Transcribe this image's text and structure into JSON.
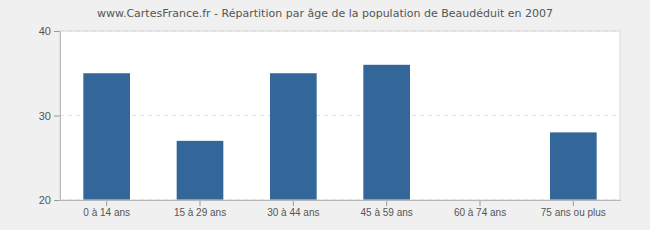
{
  "chart_data": {
    "type": "bar",
    "title": "www.CartesFrance.fr - Répartition par âge de la population de Beaudéduit en 2007",
    "categories": [
      "0 à 14 ans",
      "15 à 29 ans",
      "30 à 44 ans",
      "45 à 59 ans",
      "60 à 74 ans",
      "75 ans ou plus"
    ],
    "values": [
      35,
      27,
      35,
      36,
      20,
      28
    ],
    "color": "#336699",
    "ylim": [
      20,
      40
    ],
    "yticks": [
      20,
      30,
      40
    ],
    "grid": true
  }
}
